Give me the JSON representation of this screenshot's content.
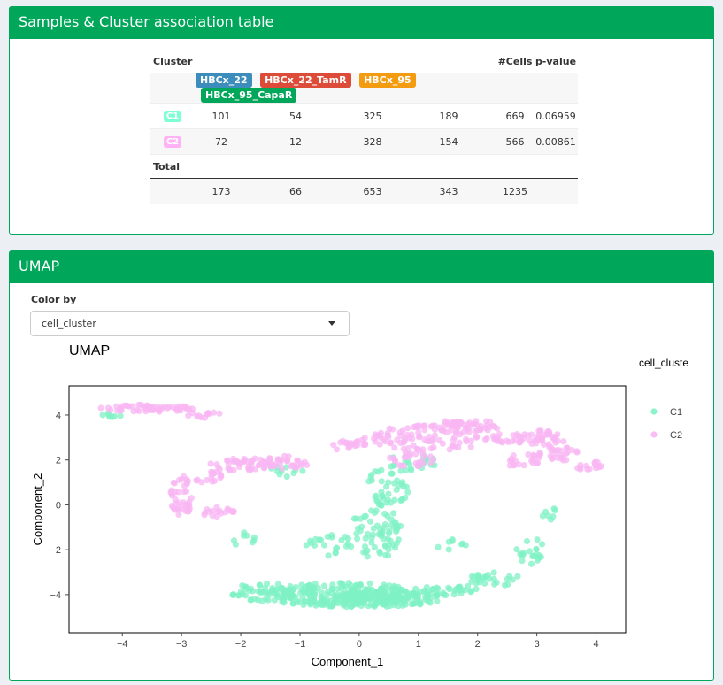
{
  "assoc_box": {
    "title": "Samples & Cluster association table",
    "header": {
      "cluster": "Cluster",
      "cells": "#Cells",
      "pvalue": "p-value"
    },
    "samples": [
      {
        "label": "HBCx_22",
        "color": "#3c8dbc"
      },
      {
        "label": "HBCx_22_TamR",
        "color": "#dd4b39"
      },
      {
        "label": "HBCx_95",
        "color": "#f39c12"
      },
      {
        "label": "HBCx_95_CapaR",
        "color": "#00a65a"
      }
    ],
    "rows": [
      {
        "cluster": "C1",
        "color": "#7fffd4",
        "v1": "101",
        "v2": "54",
        "v3": "325",
        "v4": "189",
        "cells": "669",
        "pvalue": "0.06959"
      },
      {
        "cluster": "C2",
        "color": "#ffb3f5",
        "v1": "72",
        "v2": "12",
        "v3": "328",
        "v4": "154",
        "cells": "566",
        "pvalue": "0.00861"
      }
    ],
    "total": {
      "label": "Total",
      "v1": "173",
      "v2": "66",
      "v3": "653",
      "v4": "343",
      "cells": "1235"
    }
  },
  "umap_box": {
    "title": "UMAP",
    "color_by_label": "Color by",
    "color_by_value": "cell_cluster"
  },
  "chart_data": {
    "type": "scatter",
    "title": "UMAP",
    "xlabel": "Component_1",
    "ylabel": "Component_2",
    "xlim": [
      -4.9,
      4.5
    ],
    "ylim": [
      -5.7,
      5.3
    ],
    "xticks": [
      -4,
      -3,
      -2,
      -1,
      0,
      1,
      2,
      3,
      4
    ],
    "yticks": [
      -4,
      -2,
      0,
      2,
      4
    ],
    "legend_title": "cell_cluste",
    "legend_placement": "right",
    "series": [
      {
        "name": "C1",
        "color": "#7ff2c4",
        "regions": [
          {
            "cx": -0.3,
            "cy": -4.0,
            "rx": 1.3,
            "ry": 0.55,
            "n": 230
          },
          {
            "cx": 0.5,
            "cy": -4.1,
            "rx": 0.9,
            "ry": 0.45,
            "n": 110
          },
          {
            "cx": -1.6,
            "cy": -3.9,
            "rx": 0.6,
            "ry": 0.4,
            "n": 55
          },
          {
            "cx": 1.5,
            "cy": -3.8,
            "rx": 0.5,
            "ry": 0.25,
            "n": 30
          },
          {
            "cx": 0.3,
            "cy": -1.2,
            "rx": 0.45,
            "ry": 1.2,
            "n": 65
          },
          {
            "cx": 0.5,
            "cy": 0.8,
            "rx": 0.35,
            "ry": 1.0,
            "n": 45
          },
          {
            "cx": 0.9,
            "cy": 1.9,
            "rx": 0.4,
            "ry": 0.4,
            "n": 20
          },
          {
            "cx": -0.5,
            "cy": -1.8,
            "rx": 0.45,
            "ry": 0.5,
            "n": 22
          },
          {
            "cx": 2.3,
            "cy": -3.3,
            "rx": 0.45,
            "ry": 0.3,
            "n": 25
          },
          {
            "cx": 2.9,
            "cy": -2.0,
            "rx": 0.25,
            "ry": 0.7,
            "n": 20
          },
          {
            "cx": 3.2,
            "cy": -0.4,
            "rx": 0.15,
            "ry": 0.3,
            "n": 7
          },
          {
            "cx": -4.1,
            "cy": 4.0,
            "rx": 0.25,
            "ry": 0.12,
            "n": 7
          },
          {
            "cx": -2.0,
            "cy": -1.5,
            "rx": 0.25,
            "ry": 0.3,
            "n": 8
          },
          {
            "cx": -1.3,
            "cy": 1.5,
            "rx": 0.35,
            "ry": 0.3,
            "n": 10
          },
          {
            "cx": 1.5,
            "cy": -1.8,
            "rx": 0.3,
            "ry": 0.3,
            "n": 8
          }
        ]
      },
      {
        "name": "C2",
        "color": "#f8b6f3",
        "regions": [
          {
            "cx": -3.6,
            "cy": 4.3,
            "rx": 0.8,
            "ry": 0.16,
            "n": 55
          },
          {
            "cx": -2.6,
            "cy": 4.0,
            "rx": 0.3,
            "ry": 0.15,
            "n": 12
          },
          {
            "cx": -2.0,
            "cy": 1.8,
            "rx": 0.55,
            "ry": 0.3,
            "n": 45
          },
          {
            "cx": -1.2,
            "cy": 1.9,
            "rx": 0.4,
            "ry": 0.3,
            "n": 28
          },
          {
            "cx": -3.0,
            "cy": 0.4,
            "rx": 0.2,
            "ry": 0.9,
            "n": 40
          },
          {
            "cx": -2.4,
            "cy": -0.3,
            "rx": 0.3,
            "ry": 0.25,
            "n": 18
          },
          {
            "cx": -2.6,
            "cy": 1.3,
            "rx": 0.3,
            "ry": 0.3,
            "n": 15
          },
          {
            "cx": 1.2,
            "cy": 3.0,
            "rx": 1.0,
            "ry": 0.6,
            "n": 80
          },
          {
            "cx": 1.8,
            "cy": 3.5,
            "rx": 0.6,
            "ry": 0.3,
            "n": 50
          },
          {
            "cx": 2.9,
            "cy": 3.0,
            "rx": 0.65,
            "ry": 0.35,
            "n": 55
          },
          {
            "cx": 3.3,
            "cy": 2.3,
            "rx": 0.45,
            "ry": 0.35,
            "n": 30
          },
          {
            "cx": 3.9,
            "cy": 1.7,
            "rx": 0.25,
            "ry": 0.25,
            "n": 15
          },
          {
            "cx": 0.2,
            "cy": 2.8,
            "rx": 0.5,
            "ry": 0.2,
            "n": 20
          },
          {
            "cx": -0.3,
            "cy": 2.6,
            "rx": 0.3,
            "ry": 0.2,
            "n": 8
          },
          {
            "cx": 0.9,
            "cy": 2.0,
            "rx": 0.4,
            "ry": 0.35,
            "n": 25
          },
          {
            "cx": 2.7,
            "cy": 2.0,
            "rx": 0.35,
            "ry": 0.3,
            "n": 18
          }
        ]
      }
    ]
  }
}
